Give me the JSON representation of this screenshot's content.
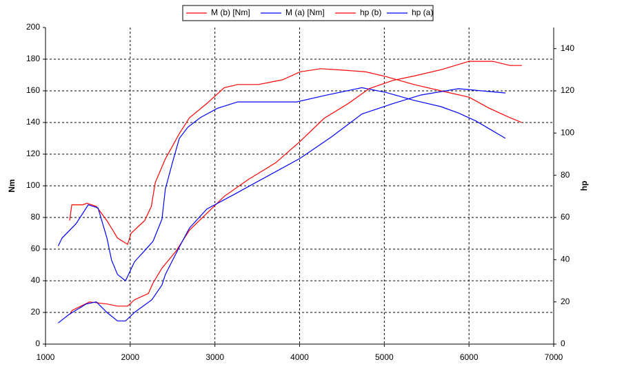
{
  "chart_data": {
    "type": "line",
    "y_label": "Nm",
    "y2_label": "hp",
    "xlim": [
      1000,
      7000
    ],
    "xticks": [
      1000,
      2000,
      3000,
      4000,
      5000,
      6000,
      7000
    ],
    "ylim": [
      0,
      200
    ],
    "yticks": [
      0,
      20,
      40,
      60,
      80,
      100,
      120,
      140,
      160,
      180,
      200
    ],
    "y2lim": [
      0,
      150
    ],
    "y2ticks": [
      0,
      20,
      40,
      60,
      80,
      100,
      120,
      140
    ],
    "grid": true,
    "legend": "top",
    "series": [
      {
        "name": "M (b) [Nm]",
        "color": "#ff0000",
        "x": [
          1285,
          1310,
          1440,
          1490,
          1600,
          1725,
          1850,
          1970,
          2010,
          2170,
          2250,
          2295,
          2415,
          2580,
          2700,
          2905,
          3110,
          3270,
          3515,
          3800,
          4005,
          4250,
          4535,
          4780,
          5020,
          5350,
          5670,
          6000,
          6240,
          6485,
          6625
        ],
        "values": [
          78,
          88,
          88,
          89,
          87,
          78,
          67,
          63,
          70,
          78,
          87,
          102,
          117,
          133,
          143,
          152,
          162,
          164,
          164,
          167,
          172,
          174,
          173,
          172,
          169,
          164,
          160,
          156,
          149,
          143,
          140
        ]
      },
      {
        "name": "M (a) [Nm]",
        "color": "#0000ff",
        "x": [
          1150,
          1195,
          1360,
          1505,
          1620,
          1725,
          1780,
          1850,
          1945,
          2050,
          2170,
          2270,
          2375,
          2415,
          2500,
          2580,
          2680,
          2825,
          3030,
          3270,
          3555,
          3965,
          4290,
          4735,
          5020,
          5350,
          5670,
          5875,
          6080,
          6240,
          6430
        ],
        "values": [
          62,
          67,
          76,
          88,
          86,
          67,
          53,
          44,
          40,
          52,
          59,
          65,
          79,
          98,
          115,
          130,
          137,
          143,
          149,
          153,
          153,
          153,
          157,
          162,
          159,
          154,
          150,
          146,
          141,
          136,
          130
        ]
      },
      {
        "name": "hp (b)",
        "color": "#ff0000",
        "axis": "y2",
        "x": [
          1285,
          1315,
          1520,
          1725,
          1850,
          1970,
          2050,
          2215,
          2270,
          2375,
          2540,
          2700,
          2905,
          3110,
          3395,
          3720,
          4005,
          4290,
          4575,
          4820,
          5105,
          5350,
          5670,
          6000,
          6280,
          6485,
          6625
        ],
        "values": [
          14,
          16,
          20,
          19,
          18,
          18,
          21,
          24,
          29,
          36,
          44,
          54,
          62,
          70,
          78,
          86,
          96,
          107,
          114,
          121,
          125,
          127,
          130,
          134,
          134,
          132,
          132
        ]
      },
      {
        "name": "hp (a)",
        "color": "#0000ff",
        "axis": "y2",
        "x": [
          1150,
          1275,
          1480,
          1600,
          1725,
          1850,
          1945,
          2050,
          2255,
          2375,
          2415,
          2580,
          2700,
          2905,
          3230,
          3640,
          4005,
          4370,
          4735,
          5105,
          5430,
          5875,
          6430
        ],
        "values": [
          10,
          14,
          19,
          20,
          15,
          11,
          11,
          15,
          21,
          28,
          33,
          46,
          55,
          64,
          71,
          80,
          88,
          98,
          109,
          114,
          118,
          121,
          119
        ]
      }
    ]
  }
}
